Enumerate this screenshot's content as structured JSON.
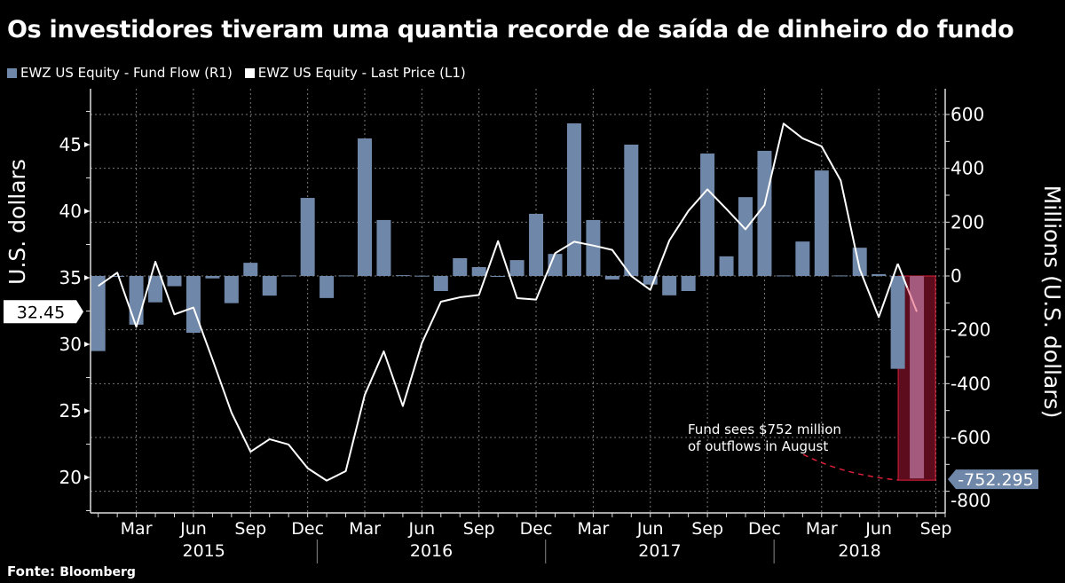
{
  "chart_data": {
    "type": "bar+line",
    "title": "Os investidores tiveram uma quantia recorde de saída de dinheiro do fundo",
    "months": [
      "Jan 2015",
      "Feb 2015",
      "Mar 2015",
      "Apr 2015",
      "May 2015",
      "Jun 2015",
      "Jul 2015",
      "Aug 2015",
      "Sep 2015",
      "Oct 2015",
      "Nov 2015",
      "Dec 2015",
      "Jan 2016",
      "Feb 2016",
      "Mar 2016",
      "Apr 2016",
      "May 2016",
      "Jun 2016",
      "Jul 2016",
      "Aug 2016",
      "Sep 2016",
      "Oct 2016",
      "Nov 2016",
      "Dec 2016",
      "Jan 2017",
      "Feb 2017",
      "Mar 2017",
      "Apr 2017",
      "May 2017",
      "Jun 2017",
      "Jul 2017",
      "Aug 2017",
      "Sep 2017",
      "Oct 2017",
      "Nov 2017",
      "Dec 2017",
      "Jan 2018",
      "Feb 2018",
      "Mar 2018",
      "Apr 2018",
      "May 2018",
      "Jun 2018",
      "Jul 2018",
      "Aug 2018",
      "Sep 2018"
    ],
    "series": [
      {
        "name": "EWZ US Equity - Fund Flow (R1)",
        "type": "bar",
        "axis": "right",
        "color": "#6f87a8",
        "values": [
          -279,
          0,
          -181,
          -98,
          -38,
          -211,
          -9,
          -101,
          49,
          -73,
          2,
          290,
          -82,
          2,
          511,
          208,
          3,
          1,
          -56,
          66,
          33,
          0,
          59,
          231,
          82,
          567,
          208,
          -13,
          488,
          -32,
          -72,
          -56,
          455,
          73,
          293,
          465,
          2,
          128,
          392,
          2,
          105,
          7,
          -345,
          -752.295,
          null
        ]
      },
      {
        "name": "EWZ US Equity - Last Price (L1)",
        "type": "line",
        "axis": "left",
        "color": "#ffffff",
        "values": [
          34.38,
          35.38,
          31.31,
          36.2,
          32.25,
          32.76,
          28.87,
          24.87,
          21.93,
          22.87,
          22.47,
          20.69,
          19.76,
          20.47,
          26.2,
          29.47,
          25.36,
          30.09,
          33.2,
          33.53,
          33.71,
          37.75,
          33.47,
          33.36,
          36.84,
          37.71,
          37.42,
          37.09,
          35.13,
          34.09,
          37.8,
          40.02,
          41.64,
          40.16,
          38.64,
          40.47,
          46.58,
          45.47,
          44.87,
          42.31,
          35.64,
          32.04,
          36.05,
          32.45,
          null
        ]
      }
    ],
    "left_axis": {
      "label": "U.S. dollars",
      "range": [
        17.3,
        49.2
      ],
      "ticks": [
        20,
        25,
        30,
        35,
        40,
        45
      ]
    },
    "right_axis": {
      "label": "Millions (U.S. dollars)",
      "range": [
        -880,
        696
      ],
      "ticks": [
        600,
        400,
        200,
        0,
        -200,
        -400,
        -600,
        -800
      ]
    },
    "x_tick_labels": [
      "Mar",
      "Jun",
      "Sep",
      "Dec"
    ],
    "years": [
      "2015",
      "2016",
      "2017",
      "2018"
    ],
    "last_price_label": "32.45",
    "last_flow_label": "-752.295",
    "annotation": [
      "Fund sees $752 million",
      "of outflows in August"
    ],
    "highlight_month": "Aug 2018",
    "legend_placement": "top-left",
    "grid": true
  },
  "legend": [
    "EWZ US Equity - Fund Flow (R1)",
    "EWZ US Equity - Last Price (L1)"
  ],
  "source": {
    "label": "Fonte:",
    "name": "Bloomberg"
  },
  "colors": {
    "bar": "#6f87a8",
    "line": "#ffffff",
    "highlight_fill": "#5c0c1c",
    "highlight_stroke": "#e0203a",
    "highlight_bar": "#a45a7c"
  }
}
